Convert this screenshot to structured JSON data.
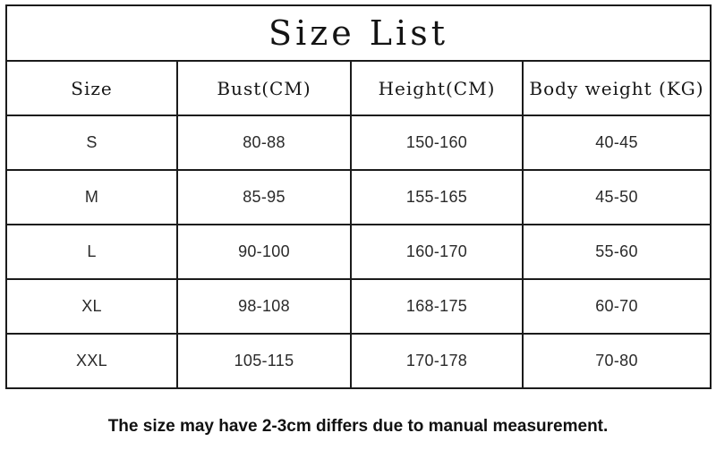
{
  "title": "Size List",
  "table": {
    "headers": [
      "Size",
      "Bust(CM)",
      "Height(CM)",
      "Body weight (KG)"
    ],
    "rows": [
      [
        "S",
        "80-88",
        "150-160",
        "40-45"
      ],
      [
        "M",
        "85-95",
        "155-165",
        "45-50"
      ],
      [
        "L",
        "90-100",
        "160-170",
        "55-60"
      ],
      [
        "XL",
        "98-108",
        "168-175",
        "60-70"
      ],
      [
        "XXL",
        "105-115",
        "170-178",
        "70-80"
      ]
    ]
  },
  "footer": {
    "note": "The size may have 2-3cm differs due to manual measurement."
  },
  "colors": {
    "background": "#ffffff",
    "border": "#1b1b1b",
    "text": "#1f1f1f"
  },
  "chart_data": {
    "type": "table",
    "title": "Size List",
    "columns": [
      "Size",
      "Bust(CM)",
      "Height(CM)",
      "Body weight (KG)"
    ],
    "rows": [
      [
        "S",
        "80-88",
        "150-160",
        "40-45"
      ],
      [
        "M",
        "85-95",
        "155-165",
        "45-50"
      ],
      [
        "L",
        "90-100",
        "160-170",
        "55-60"
      ],
      [
        "XL",
        "98-108",
        "168-175",
        "60-70"
      ],
      [
        "XXL",
        "105-115",
        "170-178",
        "70-80"
      ]
    ],
    "note": "The size may have 2-3cm differs due to manual measurement."
  }
}
